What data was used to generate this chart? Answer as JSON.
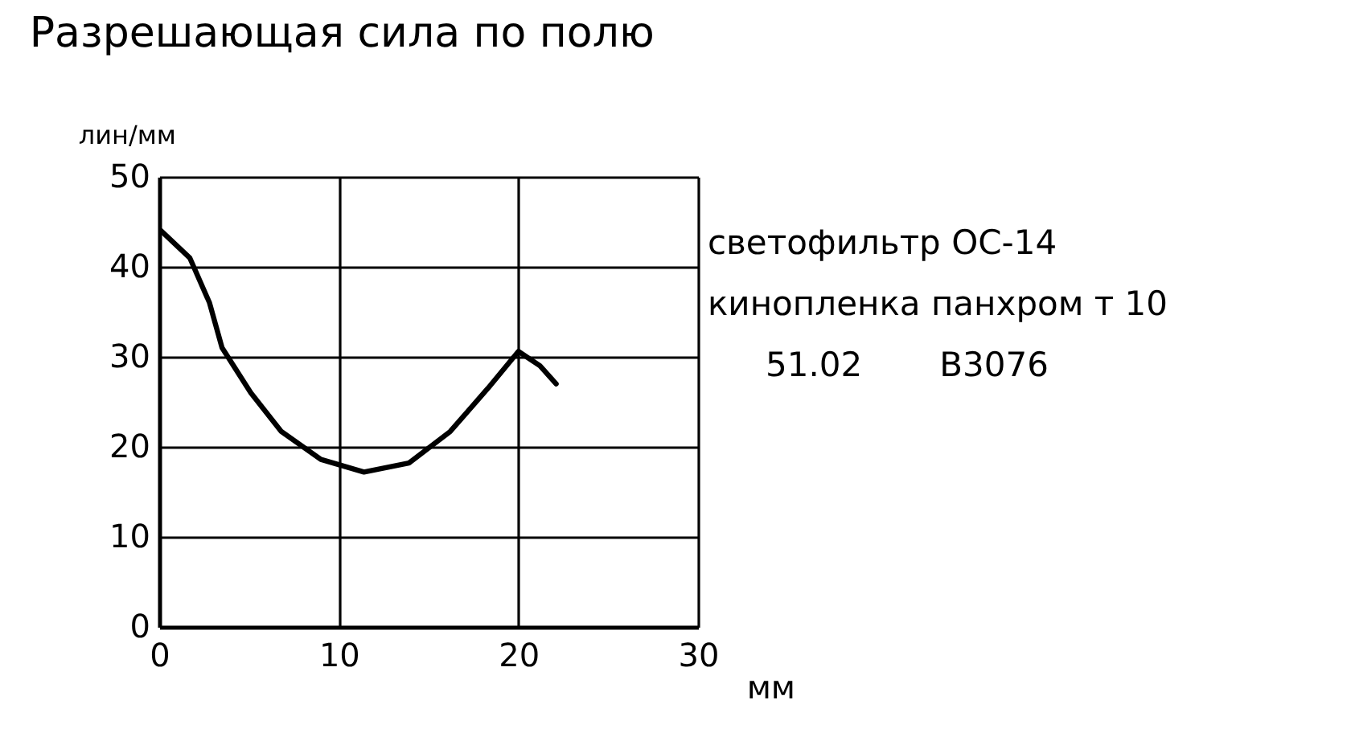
{
  "chart_data": {
    "type": "line",
    "title": "Разрешающая сила по полю",
    "xlabel": "мм",
    "ylabel": "лин/мм",
    "annotations": [
      "светофильтр ОС-14",
      "кинопленка панхром т 10",
      "51.02",
      "В3076"
    ],
    "x": [
      0.1,
      1.7,
      2.8,
      3.5,
      5.1,
      6.8,
      9.0,
      11.4,
      13.9,
      16.2,
      18.3,
      20.0,
      21.2,
      22.1
    ],
    "series": [
      {
        "color": "#000000",
        "values": [
          44,
          41,
          36,
          31,
          26,
          21.7,
          18.6,
          17.2,
          18.2,
          21.7,
          26.5,
          30.6,
          29,
          27
        ]
      }
    ],
    "xlim": [
      0,
      30
    ],
    "ylim": [
      0,
      50
    ],
    "xticks": [
      0,
      10,
      20,
      30
    ],
    "yticks": [
      0,
      10,
      20,
      30,
      40,
      50
    ],
    "grid": true,
    "marker": "none",
    "line_style": "solid"
  }
}
